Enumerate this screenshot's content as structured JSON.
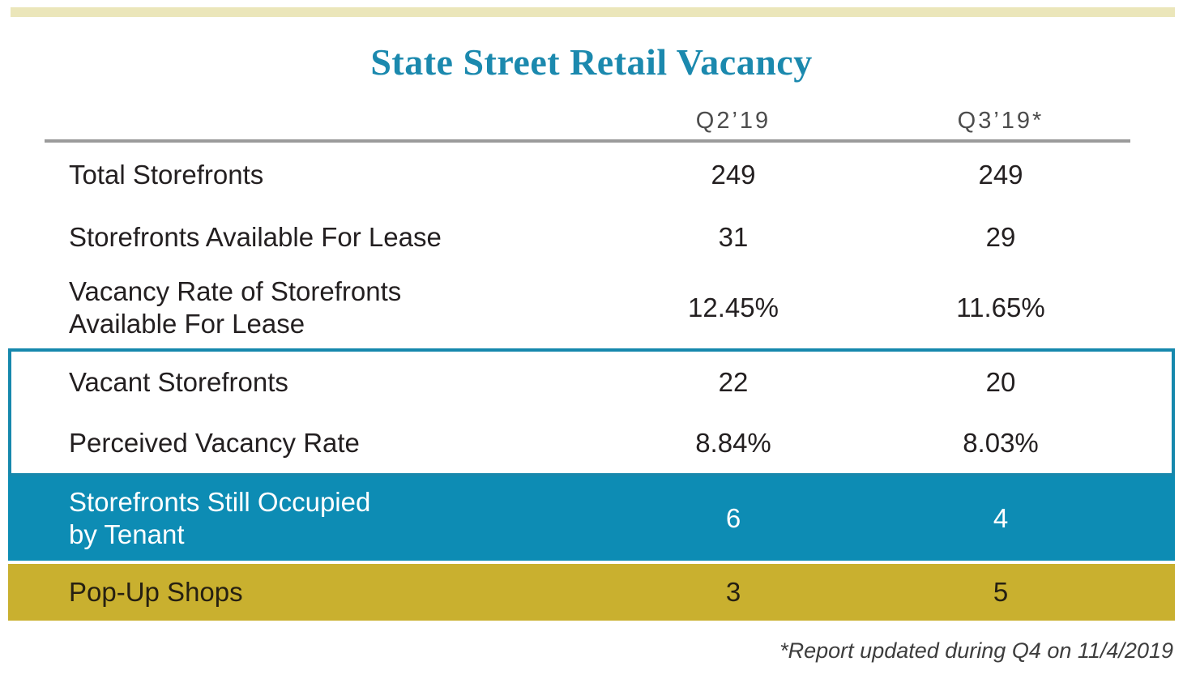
{
  "page": {
    "title": "State Street Retail Vacancy",
    "footnote": "*Report updated during Q4 on 11/4/2019"
  },
  "colors": {
    "accent_teal": "#1b89ae",
    "teal_row_fill": "#0d8cb4",
    "gold_row_fill": "#c9b02f",
    "top_bar_cream": "#ebe6ba",
    "header_text_gray": "#4d4d4d",
    "rule_gray": "#9b9b9b",
    "body_text": "#231f20"
  },
  "chart_data": {
    "type": "table",
    "title": "State Street Retail Vacancy",
    "columns": [
      "Q2’19",
      "Q3’19*"
    ],
    "rows": [
      {
        "label": "Total Storefronts",
        "values": [
          "249",
          "249"
        ],
        "highlight": "none"
      },
      {
        "label": "Storefronts Available For Lease",
        "values": [
          "31",
          "29"
        ],
        "highlight": "none"
      },
      {
        "label": "Vacancy Rate of Storefronts Available For Lease",
        "label_lines": [
          "Vacancy Rate of Storefronts",
          "Available For Lease"
        ],
        "values": [
          "12.45%",
          "11.65%"
        ],
        "highlight": "none"
      },
      {
        "label": "Vacant Storefronts",
        "values": [
          "22",
          "20"
        ],
        "highlight": "teal-outline-box"
      },
      {
        "label": "Perceived Vacancy Rate",
        "values": [
          "8.84%",
          "8.03%"
        ],
        "highlight": "teal-outline-box"
      },
      {
        "label": "Storefronts Still Occupied by Tenant",
        "label_lines": [
          "Storefronts Still Occupied",
          "by Tenant"
        ],
        "values": [
          "6",
          "4"
        ],
        "highlight": "teal-fill"
      },
      {
        "label": "Pop-Up Shops",
        "values": [
          "3",
          "5"
        ],
        "highlight": "gold-fill"
      }
    ],
    "footnote": "*Report updated during Q4 on 11/4/2019"
  }
}
